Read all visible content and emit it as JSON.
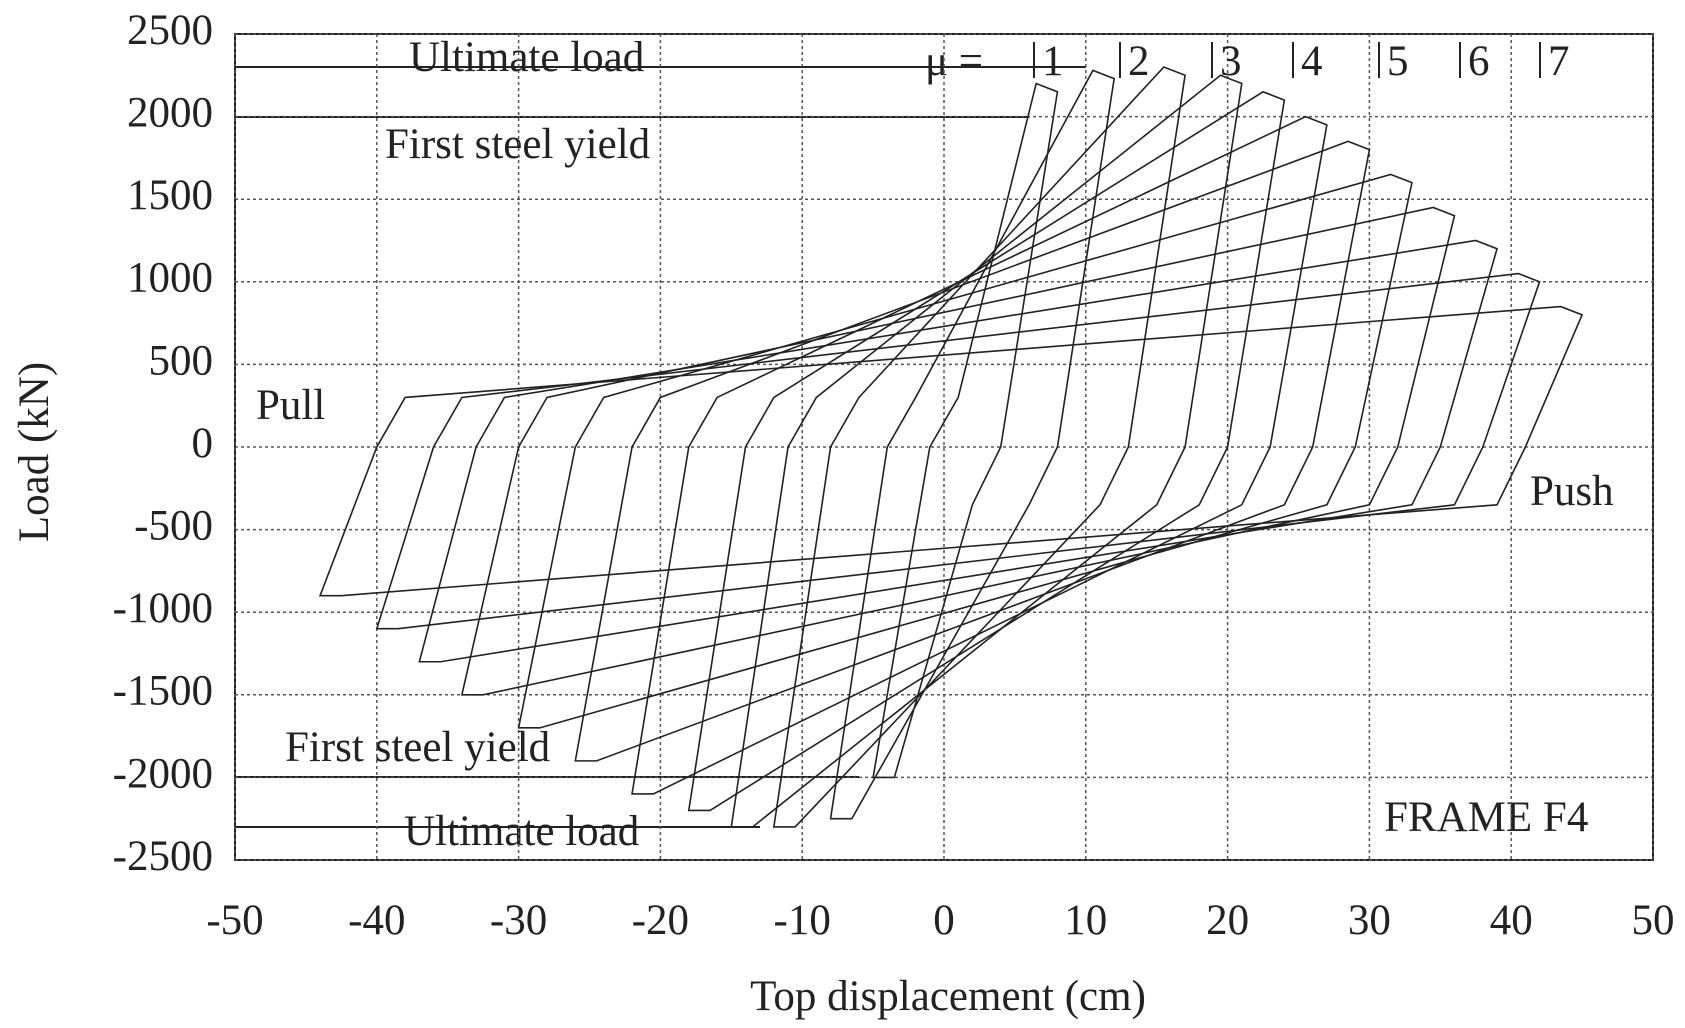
{
  "chart_data": {
    "type": "line",
    "x_label": "Top displacement (cm)",
    "y_label": "Load (kN)",
    "xlim": [
      -50,
      50
    ],
    "xticks": [
      -50,
      -40,
      -30,
      -20,
      -10,
      0,
      10,
      20,
      30,
      40,
      50
    ],
    "ylim": [
      -2500,
      2500
    ],
    "yticks": [
      -2500,
      -2000,
      -1500,
      -1000,
      -500,
      0,
      500,
      1000,
      1500,
      2000,
      2500
    ],
    "grid": true,
    "color": "#222222",
    "annotations": {
      "ultimate_top": "Ultimate load",
      "yield_top": "First steel yield",
      "pull": "Pull",
      "push": "Push",
      "yield_bottom": "First steel yield",
      "ultimate_bottom": "Ultimate load",
      "frame": "FRAME F4",
      "mu": "μ ="
    },
    "mu_labels": [
      "1",
      "2",
      "3",
      "4",
      "5",
      "6",
      "7"
    ],
    "series": [
      {
        "x": [
          -5,
          -1,
          1,
          6.5,
          8,
          4,
          2,
          -3.5
        ],
        "values": [
          -2000,
          0,
          300,
          2200,
          2150,
          0,
          -350,
          -2000
        ]
      },
      {
        "x": [
          -8,
          -4,
          -2,
          10.5,
          12,
          8,
          6,
          -6.5
        ],
        "values": [
          -2250,
          0,
          300,
          2280,
          2230,
          0,
          -350,
          -2250
        ]
      },
      {
        "x": [
          -12,
          -8,
          -6,
          15.5,
          17,
          13,
          11,
          -10.5
        ],
        "values": [
          -2300,
          0,
          300,
          2300,
          2250,
          0,
          -350,
          -2300
        ]
      },
      {
        "x": [
          -15,
          -11,
          -9,
          19.5,
          21,
          17,
          15,
          -13.5
        ],
        "values": [
          -2300,
          0,
          300,
          2250,
          2200,
          0,
          -350,
          -2300
        ]
      },
      {
        "x": [
          -18,
          -14,
          -12,
          22.5,
          24,
          20,
          18,
          -16.5
        ],
        "values": [
          -2200,
          0,
          300,
          2150,
          2100,
          0,
          -350,
          -2200
        ]
      },
      {
        "x": [
          -22,
          -18,
          -16,
          25.5,
          27,
          23,
          21,
          -20.5
        ],
        "values": [
          -2100,
          0,
          300,
          2000,
          1950,
          0,
          -350,
          -2100
        ]
      },
      {
        "x": [
          -26,
          -22,
          -20,
          28.5,
          30,
          26,
          24,
          -24.5
        ],
        "values": [
          -1900,
          0,
          300,
          1850,
          1800,
          0,
          -350,
          -1900
        ]
      },
      {
        "x": [
          -30,
          -26,
          -24,
          31.5,
          33,
          29,
          27,
          -28.5
        ],
        "values": [
          -1700,
          0,
          300,
          1650,
          1600,
          0,
          -350,
          -1700
        ]
      },
      {
        "x": [
          -34,
          -30,
          -28,
          34.5,
          36,
          32,
          30,
          -32.5
        ],
        "values": [
          -1500,
          0,
          300,
          1450,
          1400,
          0,
          -350,
          -1500
        ]
      },
      {
        "x": [
          -37,
          -33,
          -31,
          37.5,
          39,
          35,
          33,
          -35.5
        ],
        "values": [
          -1300,
          0,
          300,
          1250,
          1200,
          0,
          -350,
          -1300
        ]
      },
      {
        "x": [
          -40,
          -36,
          -34,
          40.5,
          42,
          38,
          36,
          -38.5
        ],
        "values": [
          -1100,
          0,
          300,
          1050,
          1000,
          0,
          -350,
          -1100
        ]
      },
      {
        "x": [
          -44,
          -40,
          -38,
          43.5,
          45,
          41,
          39,
          -42.5
        ],
        "values": [
          -900,
          0,
          300,
          850,
          800,
          0,
          -350,
          -900
        ]
      }
    ]
  }
}
